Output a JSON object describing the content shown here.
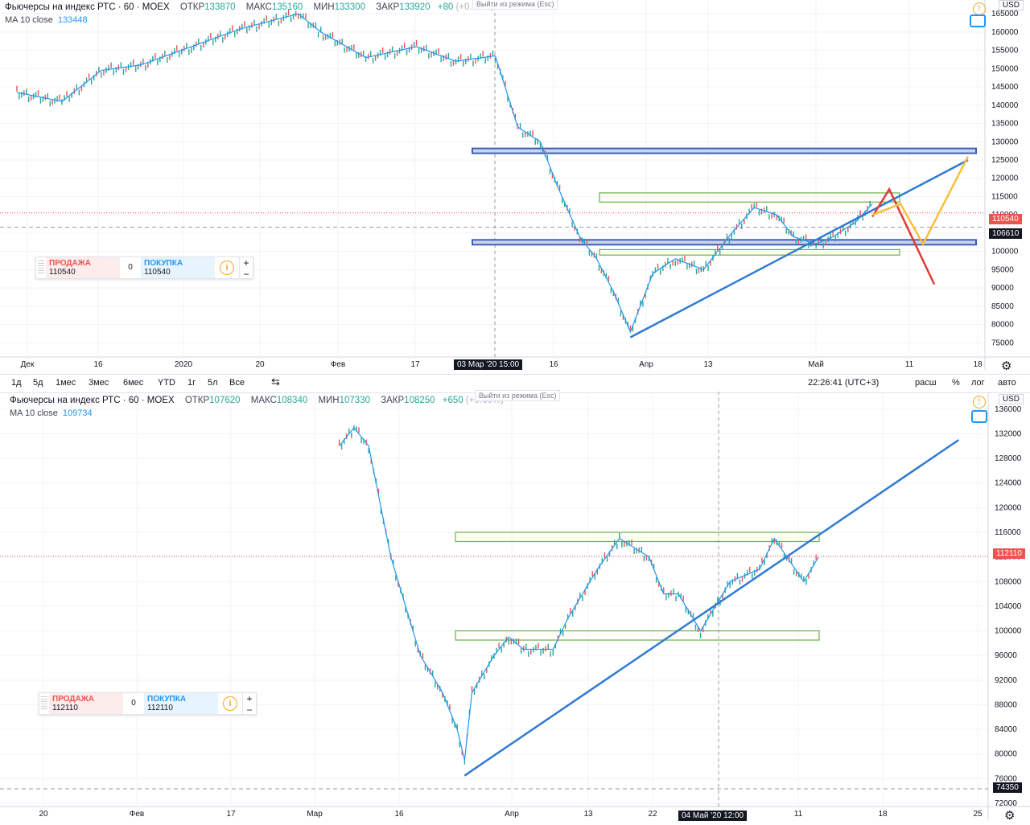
{
  "top": {
    "symbol": "Фьючерсы на индекс РТС · 60 · MOEX",
    "ohlc": [
      {
        "k": "ОТКР",
        "v": "133870"
      },
      {
        "k": "МАКС",
        "v": "135160"
      },
      {
        "k": "МИН",
        "v": "133300"
      },
      {
        "k": "ЗАКР",
        "v": "133920"
      }
    ],
    "change": "+80",
    "change_extra": "(+0.06%)",
    "ma_label": "MA 10 close",
    "ma_value": "133448",
    "esc_hint": "Выйти из режима (Esc)",
    "currency": "USD",
    "sell_label": "ПРОДАЖА",
    "sell_price": "110540",
    "qty": "0",
    "buy_label": "ПОКУПКА",
    "buy_price": "110540",
    "price_badge": "110540",
    "crosshair_price": "106610",
    "crosshair_date": "03 Мар '20   15:00",
    "y_ticks": [
      "165000",
      "160000",
      "155000",
      "150000",
      "145000",
      "140000",
      "135000",
      "130000",
      "125000",
      "120000",
      "115000",
      "110000",
      "105000",
      "100000",
      "95000",
      "90000",
      "85000",
      "80000",
      "75000"
    ],
    "x_ticks": [
      "Дек",
      "16",
      "2020",
      "20",
      "Фев",
      "17",
      "Мар",
      "16",
      "Апр",
      "13",
      "Май",
      "11",
      "18"
    ]
  },
  "toolbar": {
    "timeframes": [
      "1д",
      "5д",
      "1мес",
      "3мес",
      "6мес",
      "YTD",
      "1г",
      "5л",
      "Все"
    ],
    "clock": "22:26:41 (UTC+3)",
    "right": [
      "расш",
      "%",
      "лог",
      "авто"
    ]
  },
  "bottom": {
    "symbol": "Фьючерсы на индекс РТС · 60 · MOEX",
    "ohlc": [
      {
        "k": "ОТКР",
        "v": "107620"
      },
      {
        "k": "МАКС",
        "v": "108340"
      },
      {
        "k": "МИН",
        "v": "107330"
      },
      {
        "k": "ЗАКР",
        "v": "108250"
      }
    ],
    "change": "+650",
    "change_extra": "(+0.60%)",
    "ma_label": "MA 10 close",
    "ma_value": "109734",
    "esc_hint": "Выйти из режима (Esc)",
    "currency": "USD",
    "sell_label": "ПРОДАЖА",
    "sell_price": "112110",
    "qty": "0",
    "buy_label": "ПОКУПКА",
    "buy_price": "112110",
    "price_badge": "112110",
    "crosshair_price": "74350",
    "crosshair_date": "04 Май '20   12:00",
    "y_ticks": [
      "136000",
      "132000",
      "128000",
      "124000",
      "120000",
      "116000",
      "112000",
      "108000",
      "104000",
      "100000",
      "96000",
      "92000",
      "88000",
      "84000",
      "80000",
      "76000",
      "72000"
    ],
    "x_ticks": [
      "20",
      "Фев",
      "17",
      "Мар",
      "16",
      "Апр",
      "13",
      "22",
      "Май",
      "11",
      "18",
      "25"
    ]
  },
  "chart_data": [
    {
      "type": "line",
      "title": "Фьючерсы на индекс РТС · 60 · MOEX",
      "ylabel": "USD",
      "ylim": [
        72000,
        167000
      ],
      "series": [
        {
          "name": "MA 10 close",
          "x": [
            "2019-12-01",
            "2019-12-09",
            "2019-12-16",
            "2019-12-23",
            "2020-01-01",
            "2020-01-10",
            "2020-01-20",
            "2020-01-24",
            "2020-02-01",
            "2020-02-10",
            "2020-02-17",
            "2020-02-24",
            "2020-02-28",
            "2020-03-03",
            "2020-03-06",
            "2020-03-10",
            "2020-03-13",
            "2020-03-16",
            "2020-03-19",
            "2020-03-23",
            "2020-03-27",
            "2020-04-01",
            "2020-04-06",
            "2020-04-10",
            "2020-04-14",
            "2020-04-17",
            "2020-04-21",
            "2020-04-24",
            "2020-04-28",
            "2020-05-01"
          ],
          "y": [
            143500,
            141000,
            149500,
            151000,
            156000,
            161000,
            165000,
            160000,
            153000,
            156000,
            152000,
            153500,
            134000,
            130000,
            118000,
            104000,
            98000,
            89000,
            78000,
            94000,
            98000,
            95000,
            105000,
            112000,
            110000,
            104000,
            102000,
            104000,
            108000,
            113000
          ]
        }
      ],
      "levels": [
        {
          "kind": "blue-band",
          "price": 127500
        },
        {
          "kind": "blue-band",
          "price": 102500
        },
        {
          "kind": "green-box",
          "from": 113500,
          "to": 116000
        },
        {
          "kind": "green-box",
          "from": 99000,
          "to": 100500
        }
      ],
      "trendline": {
        "from": [
          "2020-03-19",
          76500
        ],
        "to": [
          "2020-05-18",
          125000
        ]
      },
      "projections": [
        {
          "color": "#e53935",
          "points": [
            [
              "2020-05-01",
              109500
            ],
            [
              "2020-05-04",
              117000
            ],
            [
              "2020-05-12",
              91000
            ]
          ]
        },
        {
          "color": "#f9bf3b",
          "points": [
            [
              "2020-05-01",
              110000
            ],
            [
              "2020-05-06",
              113000
            ],
            [
              "2020-05-10",
              102000
            ],
            [
              "2020-05-18",
              126000
            ]
          ]
        }
      ]
    },
    {
      "type": "line",
      "title": "Фьючерсы на индекс РТС · 60 · MOEX",
      "ylabel": "USD",
      "ylim": [
        72000,
        136500
      ],
      "series": [
        {
          "name": "MA 10 close",
          "x": [
            "2020-03-02",
            "2020-03-04",
            "2020-03-06",
            "2020-03-09",
            "2020-03-11",
            "2020-03-13",
            "2020-03-16",
            "2020-03-18",
            "2020-03-19",
            "2020-03-20",
            "2020-03-23",
            "2020-03-25",
            "2020-03-27",
            "2020-03-31",
            "2020-04-02",
            "2020-04-06",
            "2020-04-09",
            "2020-04-13",
            "2020-04-15",
            "2020-04-17",
            "2020-04-20",
            "2020-04-22",
            "2020-04-24",
            "2020-04-28",
            "2020-04-30",
            "2020-05-04",
            "2020-05-06"
          ],
          "y": [
            130000,
            133000,
            130000,
            112000,
            104000,
            96000,
            90000,
            84000,
            79000,
            90000,
            96000,
            99000,
            97000,
            97000,
            102000,
            110000,
            115000,
            112000,
            106000,
            106000,
            100000,
            104000,
            108000,
            110000,
            115000,
            108000,
            112000
          ]
        }
      ],
      "levels": [
        {
          "kind": "green-box",
          "from": 114500,
          "to": 116000
        },
        {
          "kind": "green-box",
          "from": 98500,
          "to": 100000
        }
      ],
      "trendline": {
        "from": [
          "2020-03-19",
          76500
        ],
        "to": [
          "2020-05-25",
          131000
        ]
      }
    }
  ]
}
